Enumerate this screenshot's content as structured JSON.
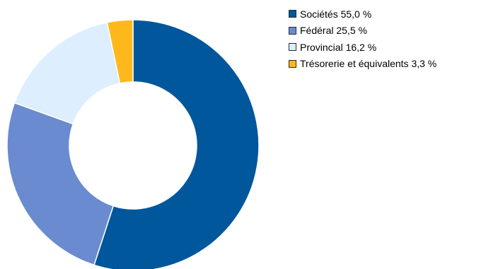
{
  "chart_data": {
    "type": "pie",
    "donut": true,
    "title": "",
    "legend_position": "right",
    "series": [
      {
        "name": "Sociétés",
        "label": "Sociétés 55,0 %",
        "value": 55.0,
        "color": "#00579B"
      },
      {
        "name": "Fédéral",
        "label": "Fédéral 25,5 %",
        "value": 25.5,
        "color": "#6A8BD0"
      },
      {
        "name": "Provincial",
        "label": "Provincial 16,2 %",
        "value": 16.2,
        "color": "#DDEEFE"
      },
      {
        "name": "Trésorerie et équivalents",
        "label": "Trésorerie et équivalents 3,3 %",
        "value": 3.3,
        "color": "#FFB81C"
      }
    ]
  }
}
